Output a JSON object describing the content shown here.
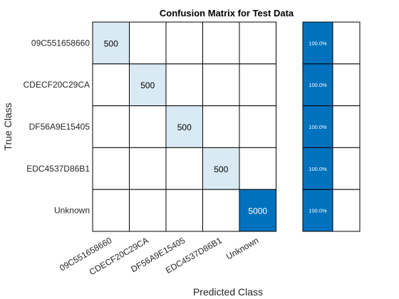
{
  "chart_data": {
    "type": "heatmap",
    "title": "Confusion Matrix for Test Data",
    "xlabel": "Predicted Class",
    "ylabel": "True Class",
    "classes": [
      "09C551658660",
      "CDECF20C29CA",
      "DF56A9E15405",
      "EDC4537D86B1",
      "Unknown"
    ],
    "matrix": [
      [
        500,
        0,
        0,
        0,
        0
      ],
      [
        0,
        500,
        0,
        0,
        0
      ],
      [
        0,
        0,
        500,
        0,
        0
      ],
      [
        0,
        0,
        0,
        500,
        0
      ],
      [
        0,
        0,
        0,
        0,
        5000
      ]
    ],
    "row_summary": {
      "correct_pct": [
        "100.0%",
        "100.0%",
        "100.0%",
        "100.0%",
        "100.0%"
      ],
      "correct_fraction": [
        1.0,
        1.0,
        1.0,
        1.0,
        1.0
      ],
      "incorrect_fraction": [
        0,
        0,
        0,
        0,
        0
      ]
    },
    "colors": {
      "high": "#0072bd",
      "low": "#ffffff",
      "grid": "#000000",
      "text_dark": "#000000",
      "text_light": "#ffffff"
    },
    "grid": true
  }
}
